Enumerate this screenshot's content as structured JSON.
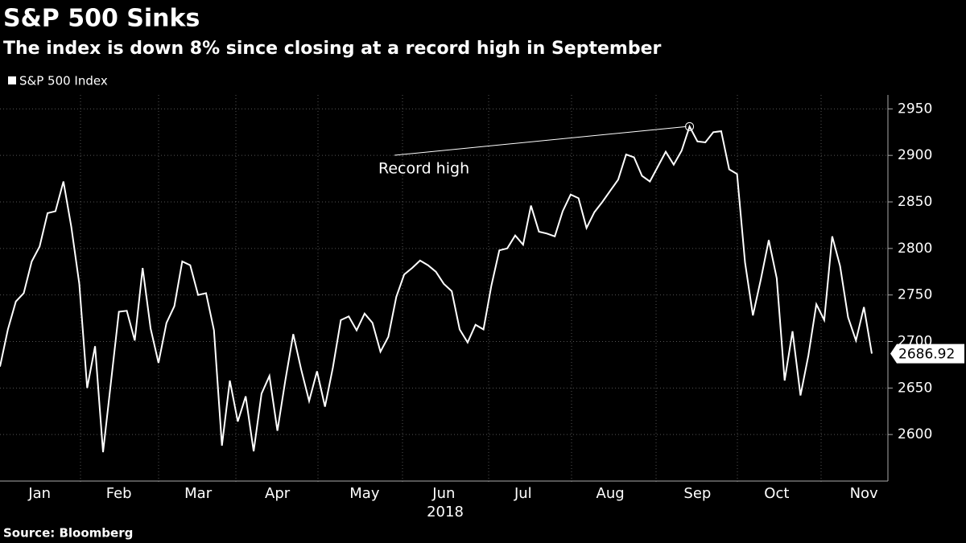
{
  "chart_data": {
    "type": "line",
    "title": "S&P 500 Sinks",
    "subtitle": "The index is down 8% since closing at a record high in September",
    "source": "Source: Bloomberg",
    "x_label": "2018",
    "annotation": {
      "text": "Record high",
      "index": 87
    },
    "categories": [
      null,
      null,
      null,
      null,
      null,
      "Jan",
      null,
      null,
      null,
      null,
      null,
      null,
      null,
      null,
      null,
      "Feb",
      null,
      null,
      null,
      null,
      null,
      null,
      null,
      null,
      null,
      "Mar",
      null,
      null,
      null,
      null,
      null,
      null,
      null,
      null,
      null,
      "Apr",
      null,
      null,
      null,
      null,
      null,
      null,
      null,
      null,
      null,
      null,
      "May",
      null,
      null,
      null,
      null,
      null,
      null,
      null,
      null,
      null,
      "Jun",
      null,
      null,
      null,
      null,
      null,
      null,
      null,
      null,
      null,
      "Jul",
      null,
      null,
      null,
      null,
      null,
      null,
      null,
      null,
      null,
      null,
      "Aug",
      null,
      null,
      null,
      null,
      null,
      null,
      null,
      null,
      null,
      null,
      "Sep",
      null,
      null,
      null,
      null,
      null,
      null,
      null,
      null,
      null,
      "Oct",
      null,
      null,
      null,
      null,
      null,
      null,
      null,
      null,
      null,
      null,
      "Nov",
      null
    ],
    "series": [
      {
        "name": "S&P 500 Index",
        "color": "#ffffff",
        "values": [
          2673,
          2713,
          2743,
          2752,
          2786,
          2802,
          2838,
          2840,
          2872,
          2823,
          2762,
          2650,
          2695,
          2581,
          2656,
          2732,
          2733,
          2701,
          2779,
          2714,
          2677,
          2720,
          2738,
          2786,
          2782,
          2750,
          2752,
          2712,
          2588,
          2658,
          2614,
          2641,
          2582,
          2644,
          2663,
          2604,
          2658,
          2708,
          2670,
          2636,
          2668,
          2630,
          2672,
          2723,
          2727,
          2712,
          2730,
          2720,
          2689,
          2705,
          2748,
          2772,
          2779,
          2787,
          2782,
          2775,
          2762,
          2754,
          2713,
          2699,
          2718,
          2713,
          2760,
          2798,
          2800,
          2814,
          2804,
          2846,
          2818,
          2816,
          2813,
          2840,
          2858,
          2854,
          2822,
          2839,
          2850,
          2862,
          2874,
          2901,
          2898,
          2878,
          2872,
          2888,
          2904,
          2890,
          2905,
          2931,
          2915,
          2914,
          2925,
          2926,
          2885,
          2880,
          2785,
          2728,
          2767,
          2809,
          2768,
          2658,
          2711,
          2642,
          2685,
          2740,
          2723,
          2813,
          2781,
          2726,
          2701,
          2737,
          2686.92
        ]
      }
    ],
    "ylim": [
      2550,
      2965
    ],
    "yticks": [
      2600,
      2650,
      2700,
      2750,
      2800,
      2850,
      2900,
      2950
    ],
    "grid": true
  }
}
